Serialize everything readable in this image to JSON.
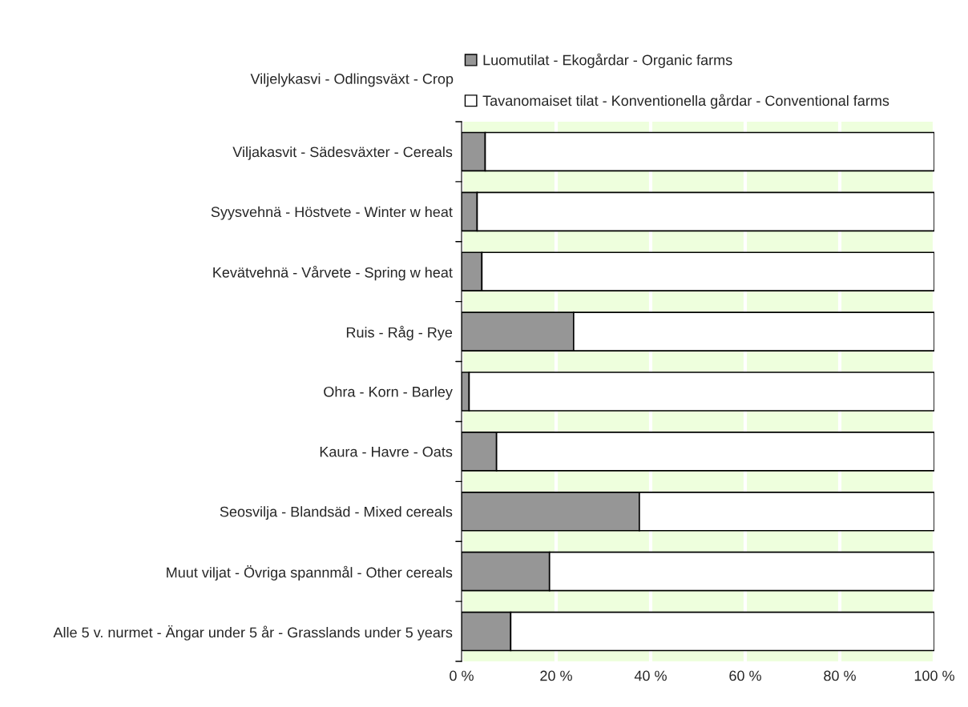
{
  "chart_data": {
    "type": "bar",
    "orientation": "horizontal",
    "stacked": true,
    "ylabel": "Viljelykasvi - Odlingsväxt - Crop",
    "categories": [
      "Viljakasvit - Sädesväxter - Cereals",
      "Syysvehnä - Höstvete - Winter w heat",
      "Kevätvehnä - Vårvete - Spring w heat",
      "Ruis - Råg - Rye",
      "Ohra - Korn - Barley",
      "Kaura - Havre - Oats",
      "Seosvilja - Blandsäd - Mixed cereals",
      "Muut viljat - Övriga spannmål - Other cereals",
      "Alle 5 v. nurmet - Ängar under 5 år - Grasslands under 5 years"
    ],
    "series": [
      {
        "name": "Luomutilat - Ekogårdar - Organic farms",
        "color": "#969696",
        "values": [
          5.0,
          3.3,
          4.3,
          23.7,
          1.6,
          7.4,
          37.6,
          18.6,
          10.4
        ]
      },
      {
        "name": "Tavanomaiset tilat - Konventionella gårdar - Conventional farms",
        "color": "#ffffff",
        "values": [
          95.0,
          96.7,
          95.7,
          76.3,
          98.4,
          92.6,
          62.4,
          81.4,
          89.6
        ]
      }
    ],
    "xlim": [
      0,
      100
    ],
    "xticks": [
      {
        "value": 0,
        "label": "0 %"
      },
      {
        "value": 20,
        "label": "20 %"
      },
      {
        "value": 40,
        "label": "40 %"
      },
      {
        "value": 60,
        "label": "60 %"
      },
      {
        "value": 80,
        "label": "80 %"
      },
      {
        "value": 100,
        "label": "100 %"
      }
    ],
    "bands": [
      {
        "axis": "x",
        "from": 0,
        "to": 100,
        "color": "#eeffdd"
      }
    ],
    "grid": "x",
    "legend": "top"
  }
}
